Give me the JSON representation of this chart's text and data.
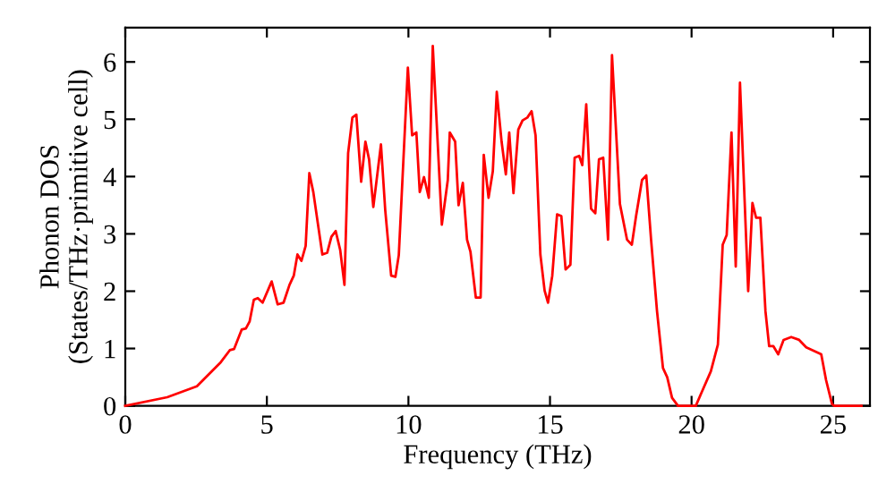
{
  "chart_data": {
    "type": "line",
    "xlabel": "Frequency (THz)",
    "ylabel": "Phonon DOS\n(States/THz·primitive cell)",
    "xlim": [
      0,
      26.3
    ],
    "ylim": [
      0,
      6.6
    ],
    "xticks": [
      0,
      5,
      10,
      15,
      20,
      25
    ],
    "yticks": [
      0,
      1,
      2,
      3,
      4,
      5,
      6
    ],
    "grid": false,
    "marker": "none",
    "line_style": "solid",
    "series": [
      {
        "color": "#ff0000",
        "x": [
          0,
          1.48,
          2.53,
          3.37,
          3.69,
          3.84,
          4.11,
          4.26,
          4.39,
          4.54,
          4.68,
          4.85,
          5.17,
          5.38,
          5.59,
          5.8,
          5.95,
          6.08,
          6.22,
          6.37,
          6.5,
          6.64,
          6.96,
          7.13,
          7.28,
          7.43,
          7.59,
          7.74,
          7.87,
          8.02,
          8.16,
          8.33,
          8.48,
          8.61,
          8.76,
          9.03,
          9.18,
          9.39,
          9.54,
          9.66,
          9.98,
          10.13,
          10.28,
          10.4,
          10.55,
          10.72,
          10.86,
          11.18,
          11.39,
          11.46,
          11.65,
          11.77,
          11.92,
          12.07,
          12.19,
          12.38,
          12.55,
          12.66,
          12.83,
          12.98,
          13.12,
          13.29,
          13.44,
          13.56,
          13.71,
          13.88,
          14.03,
          14.2,
          14.35,
          14.49,
          14.66,
          14.81,
          14.93,
          15.08,
          15.25,
          15.4,
          15.55,
          15.72,
          15.87,
          16.03,
          16.14,
          16.28,
          16.45,
          16.6,
          16.73,
          16.88,
          17.05,
          17.19,
          17.47,
          17.72,
          17.89,
          18.04,
          18.25,
          18.4,
          18.57,
          18.78,
          18.99,
          19.14,
          19.31,
          19.52,
          20.15,
          20.36,
          20.68,
          20.93,
          21.1,
          21.24,
          21.41,
          21.56,
          21.71,
          22.0,
          22.15,
          22.28,
          22.43,
          22.61,
          22.74,
          22.89,
          23.06,
          23.25,
          23.52,
          23.8,
          24.05,
          24.58,
          24.75,
          24.96,
          25.04,
          26.0
        ],
        "values": [
          0,
          0.15,
          0.34,
          0.76,
          0.97,
          0.99,
          1.33,
          1.35,
          1.47,
          1.85,
          1.88,
          1.8,
          2.17,
          1.77,
          1.8,
          2.11,
          2.27,
          2.64,
          2.53,
          2.79,
          4.06,
          3.73,
          2.64,
          2.67,
          2.95,
          3.05,
          2.72,
          2.11,
          4.41,
          5.03,
          5.08,
          3.91,
          4.61,
          4.3,
          3.47,
          4.56,
          3.42,
          2.27,
          2.25,
          2.63,
          5.9,
          4.72,
          4.77,
          3.73,
          3.99,
          3.63,
          6.28,
          3.16,
          3.94,
          4.77,
          4.61,
          3.5,
          3.89,
          2.9,
          2.69,
          1.89,
          1.89,
          4.38,
          3.63,
          4.09,
          5.48,
          4.61,
          4.04,
          4.77,
          3.71,
          4.82,
          4.98,
          5.03,
          5.14,
          4.72,
          2.64,
          2.01,
          1.8,
          2.27,
          3.34,
          3.31,
          2.38,
          2.46,
          4.33,
          4.36,
          4.2,
          5.26,
          3.44,
          3.36,
          4.3,
          4.33,
          2.9,
          6.12,
          3.52,
          2.9,
          2.81,
          3.31,
          3.94,
          4.02,
          2.9,
          1.65,
          0.66,
          0.5,
          0.14,
          0,
          0,
          0.24,
          0.6,
          1.07,
          2.81,
          2.98,
          4.77,
          2.43,
          5.64,
          2.0,
          3.54,
          3.28,
          3.28,
          1.65,
          1.04,
          1.04,
          0.9,
          1.15,
          1.2,
          1.15,
          1.02,
          0.9,
          0.45,
          0.03,
          0,
          0
        ]
      }
    ]
  }
}
